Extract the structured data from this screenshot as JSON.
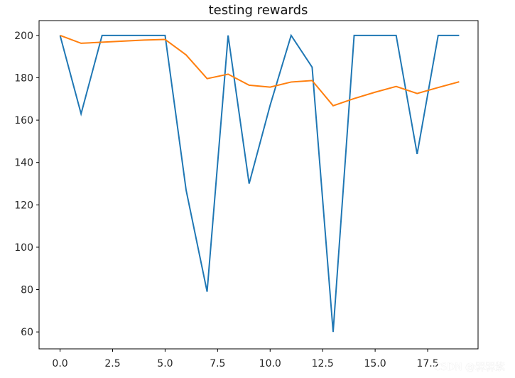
{
  "chart_data": {
    "type": "line",
    "title": "testing rewards",
    "x": [
      0,
      1,
      2,
      3,
      4,
      5,
      6,
      7,
      8,
      9,
      10,
      11,
      12,
      13,
      14,
      15,
      16,
      17,
      18,
      19
    ],
    "series": [
      {
        "color": "#1f77b4",
        "values": [
          200,
          163,
          200,
          200,
          200,
          200,
          127,
          79,
          200,
          130,
          167,
          200,
          185,
          60,
          200,
          200,
          200,
          144,
          200,
          200
        ]
      },
      {
        "color": "#ff7f0e",
        "values": [
          200,
          196.3,
          196.8,
          197.3,
          197.8,
          198.1,
          190.8,
          179.6,
          181.7,
          176.5,
          175.6,
          178,
          178.7,
          166.8,
          170.2,
          173.2,
          175.9,
          172.6,
          175.4,
          178.1
        ]
      }
    ],
    "xlim": [
      -1,
      19.9
    ],
    "ylim": [
      52,
      207
    ],
    "xticks": [
      0,
      2.5,
      5,
      7.5,
      10,
      12.5,
      15,
      17.5
    ],
    "xtick_labels": [
      "0.0",
      "2.5",
      "5.0",
      "7.5",
      "10.0",
      "12.5",
      "15.0",
      "17.5"
    ],
    "yticks": [
      60,
      80,
      100,
      120,
      140,
      160,
      180,
      200
    ],
    "ytick_labels": [
      "60",
      "80",
      "100",
      "120",
      "140",
      "160",
      "180",
      "200"
    ],
    "grid": false
  },
  "watermark": "CSDN @槑槑紫"
}
